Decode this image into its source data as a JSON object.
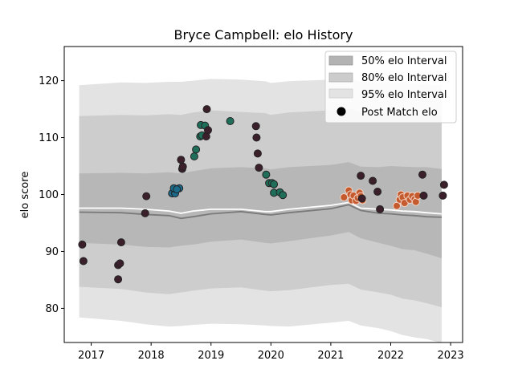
{
  "chart_data": {
    "type": "area",
    "title": "Bryce Campbell: elo History",
    "xlabel": "",
    "ylabel": "elo score",
    "xlim": [
      2016.55,
      2023.2
    ],
    "ylim": [
      74,
      126
    ],
    "x_ticks": [
      2017,
      2018,
      2019,
      2020,
      2021,
      2022,
      2023
    ],
    "y_ticks": [
      80,
      90,
      100,
      110,
      120
    ],
    "grid": false,
    "legend_position": "top-right",
    "legend": [
      {
        "label": "50% elo Interval",
        "kind": "band",
        "color": "#b3b3b3"
      },
      {
        "label": "80% elo Interval",
        "kind": "band",
        "color": "#cccccc"
      },
      {
        "label": "95% elo Interval",
        "kind": "band",
        "color": "#e3e3e3"
      },
      {
        "label": "Post Match elo",
        "kind": "marker",
        "color": "#000000"
      }
    ],
    "bands": {
      "x": [
        2016.8,
        2017.5,
        2017.9,
        2018.3,
        2018.5,
        2018.7,
        2019.0,
        2019.5,
        2019.9,
        2020.0,
        2020.3,
        2021.0,
        2021.3,
        2021.5,
        2021.8,
        2022.0,
        2022.2,
        2022.4,
        2022.6,
        2022.85
      ],
      "median": [
        96.9,
        96.8,
        96.5,
        96.3,
        95.8,
        96.1,
        96.6,
        97.0,
        96.5,
        96.4,
        96.8,
        97.5,
        98.2,
        97.2,
        96.7,
        96.6,
        96.4,
        96.3,
        96.1,
        96.0
      ],
      "mean": [
        97.6,
        97.6,
        97.4,
        97.1,
        96.7,
        97.1,
        97.4,
        97.4,
        97.0,
        97.0,
        97.4,
        98.1,
        98.6,
        97.6,
        97.4,
        97.3,
        97.1,
        97.0,
        96.8,
        96.6
      ],
      "p50_low": [
        91.5,
        91.2,
        90.8,
        90.7,
        91.0,
        91.2,
        91.7,
        92.1,
        91.5,
        91.4,
        91.8,
        92.8,
        93.4,
        92.3,
        91.5,
        91.0,
        90.4,
        90.2,
        89.6,
        88.8
      ],
      "p50_high": [
        103.7,
        103.8,
        103.7,
        103.9,
        103.7,
        104.1,
        104.6,
        104.8,
        104.6,
        104.4,
        104.8,
        105.2,
        105.7,
        104.9,
        104.8,
        105.0,
        104.9,
        104.8,
        104.8,
        104.5
      ],
      "p80_low": [
        83.8,
        83.4,
        82.8,
        82.5,
        82.8,
        83.1,
        83.5,
        83.7,
        83.1,
        83.0,
        83.2,
        84.1,
        84.3,
        83.3,
        82.8,
        82.4,
        81.7,
        81.4,
        80.9,
        80.2
      ],
      "p80_high": [
        113.8,
        114.0,
        113.9,
        114.1,
        114.0,
        114.4,
        114.8,
        114.5,
        114.3,
        114.0,
        114.4,
        114.8,
        115.1,
        114.4,
        114.3,
        114.4,
        114.3,
        114.2,
        114.1,
        113.8
      ],
      "p95_low": [
        78.4,
        77.8,
        77.2,
        76.8,
        76.9,
        77.1,
        77.3,
        77.2,
        77.0,
        76.9,
        76.8,
        77.5,
        77.8,
        77.0,
        76.5,
        76.0,
        75.3,
        74.9,
        74.6,
        73.9
      ],
      "p95_high": [
        119.2,
        119.7,
        119.6,
        119.8,
        119.8,
        120.0,
        120.3,
        120.2,
        119.9,
        119.6,
        119.9,
        120.2,
        120.4,
        119.8,
        119.6,
        119.6,
        119.6,
        119.5,
        119.4,
        119.2
      ]
    },
    "points": [
      {
        "x": 2016.85,
        "y": 91.2,
        "color": "#3b1f2b"
      },
      {
        "x": 2016.87,
        "y": 88.3,
        "color": "#3b1f2b"
      },
      {
        "x": 2017.45,
        "y": 87.6,
        "color": "#3b1f2b"
      },
      {
        "x": 2017.48,
        "y": 87.9,
        "color": "#3b1f2b"
      },
      {
        "x": 2017.45,
        "y": 85.1,
        "color": "#3b1f2b"
      },
      {
        "x": 2017.5,
        "y": 91.6,
        "color": "#3b1f2b"
      },
      {
        "x": 2017.9,
        "y": 96.7,
        "color": "#3b1f2b"
      },
      {
        "x": 2017.92,
        "y": 99.7,
        "color": "#3b1f2b"
      },
      {
        "x": 2018.35,
        "y": 100.2,
        "color": "#1b6a8a"
      },
      {
        "x": 2018.4,
        "y": 100.2,
        "color": "#1b6a8a"
      },
      {
        "x": 2018.38,
        "y": 101.1,
        "color": "#1b6a8a"
      },
      {
        "x": 2018.47,
        "y": 101.1,
        "color": "#1b6a8a"
      },
      {
        "x": 2018.43,
        "y": 100.9,
        "color": "#1b6a8a"
      },
      {
        "x": 2018.52,
        "y": 104.5,
        "color": "#3b1f2b"
      },
      {
        "x": 2018.53,
        "y": 104.9,
        "color": "#3b1f2b"
      },
      {
        "x": 2018.5,
        "y": 106.1,
        "color": "#3b1f2b"
      },
      {
        "x": 2018.72,
        "y": 106.7,
        "color": "#1e6e5a"
      },
      {
        "x": 2018.75,
        "y": 107.9,
        "color": "#1e6e5a"
      },
      {
        "x": 2018.82,
        "y": 110.2,
        "color": "#1e6e5a"
      },
      {
        "x": 2018.85,
        "y": 110.4,
        "color": "#1e6e5a"
      },
      {
        "x": 2018.83,
        "y": 112.2,
        "color": "#1e6e5a"
      },
      {
        "x": 2018.9,
        "y": 112.1,
        "color": "#1e6e5a"
      },
      {
        "x": 2018.92,
        "y": 110.2,
        "color": "#3b1f2b"
      },
      {
        "x": 2018.95,
        "y": 111.3,
        "color": "#3b1f2b"
      },
      {
        "x": 2018.93,
        "y": 115.0,
        "color": "#3b1f2b"
      },
      {
        "x": 2019.32,
        "y": 112.9,
        "color": "#1e6e5a"
      },
      {
        "x": 2019.75,
        "y": 112.0,
        "color": "#3b1f2b"
      },
      {
        "x": 2019.76,
        "y": 110.0,
        "color": "#3b1f2b"
      },
      {
        "x": 2019.78,
        "y": 107.2,
        "color": "#3b1f2b"
      },
      {
        "x": 2019.8,
        "y": 104.7,
        "color": "#3b1f2b"
      },
      {
        "x": 2019.92,
        "y": 103.5,
        "color": "#1e6e5a"
      },
      {
        "x": 2019.97,
        "y": 102.0,
        "color": "#1e6e5a"
      },
      {
        "x": 2020.02,
        "y": 102.0,
        "color": "#1e6e5a"
      },
      {
        "x": 2020.05,
        "y": 101.8,
        "color": "#1e6e5a"
      },
      {
        "x": 2020.05,
        "y": 100.3,
        "color": "#1e6e5a"
      },
      {
        "x": 2020.15,
        "y": 100.4,
        "color": "#1e6e5a"
      },
      {
        "x": 2020.2,
        "y": 99.9,
        "color": "#1e6e5a"
      },
      {
        "x": 2021.22,
        "y": 99.5,
        "color": "#c45a2e"
      },
      {
        "x": 2021.3,
        "y": 100.7,
        "color": "#c45a2e"
      },
      {
        "x": 2021.33,
        "y": 100.0,
        "color": "#c45a2e"
      },
      {
        "x": 2021.35,
        "y": 99.0,
        "color": "#c45a2e"
      },
      {
        "x": 2021.38,
        "y": 99.8,
        "color": "#c45a2e"
      },
      {
        "x": 2021.42,
        "y": 98.9,
        "color": "#c45a2e"
      },
      {
        "x": 2021.45,
        "y": 99.4,
        "color": "#c45a2e"
      },
      {
        "x": 2021.48,
        "y": 100.3,
        "color": "#c45a2e"
      },
      {
        "x": 2021.5,
        "y": 99.7,
        "color": "#c45a2e"
      },
      {
        "x": 2021.53,
        "y": 99.0,
        "color": "#c45a2e"
      },
      {
        "x": 2021.5,
        "y": 103.3,
        "color": "#3b1f2b"
      },
      {
        "x": 2021.52,
        "y": 99.3,
        "color": "#3b1f2b"
      },
      {
        "x": 2021.7,
        "y": 102.4,
        "color": "#3b1f2b"
      },
      {
        "x": 2021.78,
        "y": 100.5,
        "color": "#3b1f2b"
      },
      {
        "x": 2021.82,
        "y": 97.4,
        "color": "#3b1f2b"
      },
      {
        "x": 2022.1,
        "y": 98.0,
        "color": "#c45a2e"
      },
      {
        "x": 2022.15,
        "y": 99.1,
        "color": "#c45a2e"
      },
      {
        "x": 2022.17,
        "y": 100.0,
        "color": "#c45a2e"
      },
      {
        "x": 2022.2,
        "y": 99.5,
        "color": "#c45a2e"
      },
      {
        "x": 2022.23,
        "y": 98.5,
        "color": "#c45a2e"
      },
      {
        "x": 2022.28,
        "y": 99.8,
        "color": "#c45a2e"
      },
      {
        "x": 2022.32,
        "y": 99.1,
        "color": "#c45a2e"
      },
      {
        "x": 2022.36,
        "y": 99.7,
        "color": "#c45a2e"
      },
      {
        "x": 2022.4,
        "y": 99.2,
        "color": "#c45a2e"
      },
      {
        "x": 2022.42,
        "y": 98.7,
        "color": "#c45a2e"
      },
      {
        "x": 2022.45,
        "y": 99.8,
        "color": "#c45a2e"
      },
      {
        "x": 2022.53,
        "y": 103.5,
        "color": "#3b1f2b"
      },
      {
        "x": 2022.55,
        "y": 99.8,
        "color": "#3b1f2b"
      },
      {
        "x": 2022.87,
        "y": 99.8,
        "color": "#3b1f2b"
      },
      {
        "x": 2022.89,
        "y": 101.7,
        "color": "#3b1f2b"
      }
    ]
  }
}
